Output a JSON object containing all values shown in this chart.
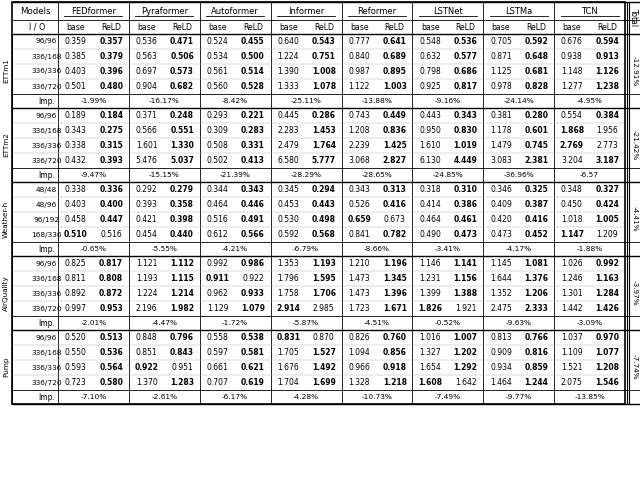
{
  "datasets": [
    "ETTm1",
    "ETTm2",
    "Weather-h",
    "AirQuality",
    "Pump"
  ],
  "model_names": [
    "FEDformer",
    "Pyraformer",
    "Autoformer",
    "Informer",
    "Reformer",
    "LSTNet",
    "LSTMa",
    "TCN"
  ],
  "io_labels": [
    [
      "96/96",
      "336/168",
      "336/336",
      "336/720"
    ],
    [
      "96/96",
      "336/168",
      "336/336",
      "336/720"
    ],
    [
      "48/48",
      "48/96",
      "96/192",
      "168/336"
    ],
    [
      "96/96",
      "336/168",
      "336/336",
      "336/720"
    ],
    [
      "96/96",
      "336/168",
      "336/336",
      "336/720"
    ]
  ],
  "imp_values": [
    [
      "-1.99%",
      "-16.17%",
      "-8.42%",
      "-25.11%",
      "-13.88%",
      "-9.16%",
      "-24.14%",
      "-4.95%"
    ],
    [
      "-9.47%",
      "-15.15%",
      "-21.39%",
      "-28.29%",
      "-28.65%",
      "-24.85%",
      "-36.96%",
      "-6.57"
    ],
    [
      "-0.65%",
      "-5.55%",
      "-4.21%",
      "-6.79%",
      "-8.66%",
      "-3.41%",
      "-4.17%",
      "-1.88%"
    ],
    [
      "-2.01%",
      "-4.47%",
      "-1.72%",
      "-5.87%",
      "-4.51%",
      "-0.52%",
      "-9.63%",
      "-3.09%"
    ],
    [
      "-7.10%",
      "-2.61%",
      "-6.17%",
      "-4.28%",
      "-10.73%",
      "-7.49%",
      "-9.77%",
      "-13.85%"
    ]
  ],
  "total_values": [
    "-12.91%",
    "-21.42%",
    "-4.41%",
    "-3.97%",
    "-7.74%"
  ],
  "data": [
    [
      [
        [
          0.359,
          0.357
        ],
        [
          0.385,
          0.379
        ],
        [
          0.403,
          0.396
        ],
        [
          0.501,
          0.48
        ]
      ],
      [
        [
          0.536,
          0.471
        ],
        [
          0.563,
          0.506
        ],
        [
          0.697,
          0.573
        ],
        [
          0.904,
          0.682
        ]
      ],
      [
        [
          0.524,
          0.455
        ],
        [
          0.534,
          0.5
        ],
        [
          0.561,
          0.514
        ],
        [
          0.56,
          0.528
        ]
      ],
      [
        [
          0.64,
          0.543
        ],
        [
          1.224,
          0.751
        ],
        [
          1.39,
          1.008
        ],
        [
          1.333,
          1.078
        ]
      ],
      [
        [
          0.777,
          0.641
        ],
        [
          0.84,
          0.689
        ],
        [
          0.987,
          0.895
        ],
        [
          1.122,
          1.003
        ]
      ],
      [
        [
          0.548,
          0.536
        ],
        [
          0.632,
          0.577
        ],
        [
          0.798,
          0.686
        ],
        [
          0.925,
          0.817
        ]
      ],
      [
        [
          0.705,
          0.592
        ],
        [
          0.871,
          0.648
        ],
        [
          1.125,
          0.681
        ],
        [
          0.978,
          0.828
        ]
      ],
      [
        [
          0.676,
          0.594
        ],
        [
          0.938,
          0.913
        ],
        [
          1.148,
          1.126
        ],
        [
          1.277,
          1.238
        ]
      ]
    ],
    [
      [
        [
          0.189,
          0.184
        ],
        [
          0.343,
          0.275
        ],
        [
          0.338,
          0.315
        ],
        [
          0.432,
          0.393
        ]
      ],
      [
        [
          0.371,
          0.248
        ],
        [
          0.566,
          0.551
        ],
        [
          1.601,
          1.33
        ],
        [
          5.476,
          5.037
        ]
      ],
      [
        [
          0.293,
          0.221
        ],
        [
          0.309,
          0.283
        ],
        [
          0.508,
          0.331
        ],
        [
          0.502,
          0.413
        ]
      ],
      [
        [
          0.445,
          0.286
        ],
        [
          2.283,
          1.453
        ],
        [
          2.479,
          1.764
        ],
        [
          6.58,
          5.777
        ]
      ],
      [
        [
          0.743,
          0.449
        ],
        [
          1.208,
          0.836
        ],
        [
          2.239,
          1.425
        ],
        [
          3.068,
          2.827
        ]
      ],
      [
        [
          0.443,
          0.343
        ],
        [
          0.95,
          0.83
        ],
        [
          1.61,
          1.019
        ],
        [
          6.13,
          4.449
        ]
      ],
      [
        [
          0.381,
          0.28
        ],
        [
          1.178,
          0.601
        ],
        [
          1.479,
          0.745
        ],
        [
          3.083,
          2.381
        ]
      ],
      [
        [
          0.554,
          0.384
        ],
        [
          1.868,
          1.956
        ],
        [
          2.769,
          2.773
        ],
        [
          3.204,
          3.187
        ]
      ]
    ],
    [
      [
        [
          0.338,
          0.336
        ],
        [
          0.403,
          0.4
        ],
        [
          0.458,
          0.447
        ],
        [
          0.51,
          0.516
        ]
      ],
      [
        [
          0.292,
          0.279
        ],
        [
          0.393,
          0.358
        ],
        [
          0.421,
          0.398
        ],
        [
          0.454,
          0.44
        ]
      ],
      [
        [
          0.344,
          0.343
        ],
        [
          0.464,
          0.446
        ],
        [
          0.516,
          0.491
        ],
        [
          0.612,
          0.566
        ]
      ],
      [
        [
          0.345,
          0.294
        ],
        [
          0.453,
          0.443
        ],
        [
          0.53,
          0.498
        ],
        [
          0.592,
          0.568
        ]
      ],
      [
        [
          0.343,
          0.313
        ],
        [
          0.526,
          0.416
        ],
        [
          0.659,
          0.673
        ],
        [
          0.841,
          0.782
        ]
      ],
      [
        [
          0.318,
          0.31
        ],
        [
          0.414,
          0.386
        ],
        [
          0.464,
          0.461
        ],
        [
          0.49,
          0.473
        ]
      ],
      [
        [
          0.346,
          0.325
        ],
        [
          0.409,
          0.387
        ],
        [
          0.42,
          0.416
        ],
        [
          0.473,
          0.452
        ]
      ],
      [
        [
          0.348,
          0.327
        ],
        [
          0.45,
          0.424
        ],
        [
          1.018,
          1.005
        ],
        [
          1.147,
          1.209
        ]
      ]
    ],
    [
      [
        [
          0.825,
          0.817
        ],
        [
          0.811,
          0.808
        ],
        [
          0.892,
          0.872
        ],
        [
          0.997,
          0.953
        ]
      ],
      [
        [
          1.121,
          1.112
        ],
        [
          1.193,
          1.115
        ],
        [
          1.224,
          1.214
        ],
        [
          2.196,
          1.982
        ]
      ],
      [
        [
          0.992,
          0.986
        ],
        [
          0.911,
          0.922
        ],
        [
          0.962,
          0.933
        ],
        [
          1.129,
          1.079
        ]
      ],
      [
        [
          1.353,
          1.193
        ],
        [
          1.796,
          1.595
        ],
        [
          1.758,
          1.706
        ],
        [
          2.914,
          2.985
        ]
      ],
      [
        [
          1.21,
          1.196
        ],
        [
          1.473,
          1.345
        ],
        [
          1.473,
          1.396
        ],
        [
          1.723,
          1.671
        ]
      ],
      [
        [
          1.146,
          1.141
        ],
        [
          1.231,
          1.156
        ],
        [
          1.399,
          1.388
        ],
        [
          1.826,
          1.921
        ]
      ],
      [
        [
          1.145,
          1.081
        ],
        [
          1.644,
          1.376
        ],
        [
          1.352,
          1.206
        ],
        [
          2.475,
          2.333
        ]
      ],
      [
        [
          1.026,
          0.992
        ],
        [
          1.246,
          1.163
        ],
        [
          1.301,
          1.284
        ],
        [
          1.442,
          1.426
        ]
      ]
    ],
    [
      [
        [
          0.52,
          0.513
        ],
        [
          0.55,
          0.536
        ],
        [
          0.593,
          0.564
        ],
        [
          0.723,
          0.58
        ]
      ],
      [
        [
          0.848,
          0.796
        ],
        [
          0.851,
          0.843
        ],
        [
          0.922,
          0.951
        ],
        [
          1.37,
          1.283
        ]
      ],
      [
        [
          0.558,
          0.538
        ],
        [
          0.597,
          0.581
        ],
        [
          0.661,
          0.621
        ],
        [
          0.707,
          0.619
        ]
      ],
      [
        [
          0.831,
          0.87
        ],
        [
          1.705,
          1.527
        ],
        [
          1.676,
          1.492
        ],
        [
          1.704,
          1.699
        ]
      ],
      [
        [
          0.826,
          0.76
        ],
        [
          1.094,
          0.856
        ],
        [
          0.966,
          0.918
        ],
        [
          1.328,
          1.218
        ]
      ],
      [
        [
          1.016,
          1.007
        ],
        [
          1.327,
          1.202
        ],
        [
          1.654,
          1.292
        ],
        [
          1.608,
          1.642
        ]
      ],
      [
        [
          0.813,
          0.766
        ],
        [
          0.909,
          0.816
        ],
        [
          0.934,
          0.859
        ],
        [
          1.464,
          1.244
        ]
      ],
      [
        [
          1.037,
          0.97
        ],
        [
          1.109,
          1.077
        ],
        [
          1.521,
          1.208
        ],
        [
          2.075,
          1.546
        ]
      ]
    ]
  ],
  "bg_color": "#ffffff"
}
